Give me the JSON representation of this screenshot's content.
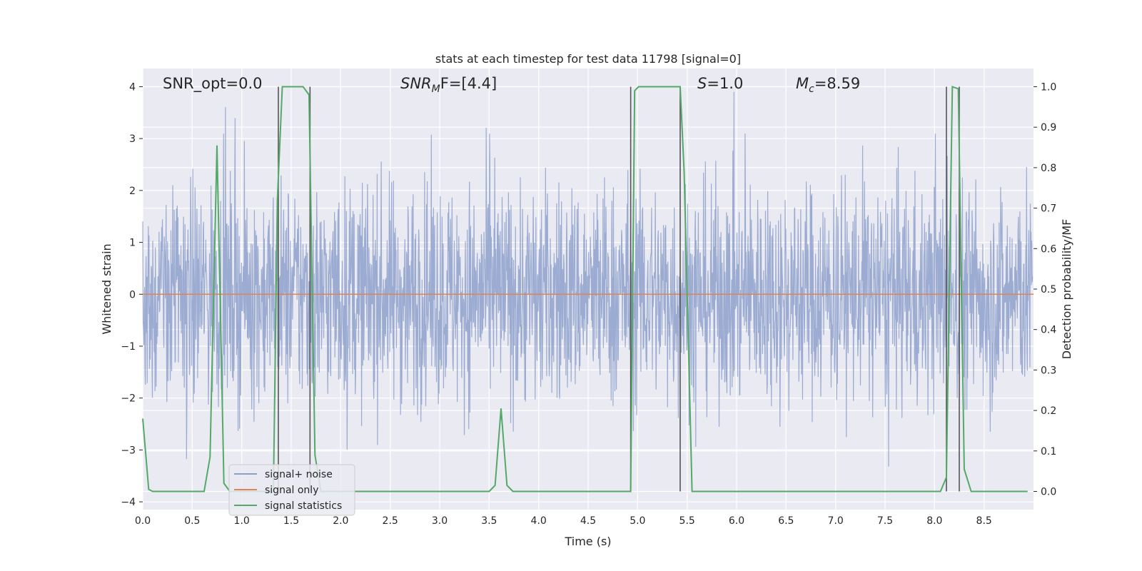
{
  "chart_data": {
    "type": "line",
    "title": "stats at each timestep for test data 11798 [signal=0]",
    "xlabel": "Time (s)",
    "ylabel": "Whitened strain",
    "ylabel_right": "Detection probability/MF",
    "xlim": [
      0,
      9.0
    ],
    "ylim": [
      -4.15,
      4.35
    ],
    "ylim_right": [
      -0.045,
      1.045
    ],
    "x_ticks": [
      "0.0",
      "0.5",
      "1.0",
      "1.5",
      "2.0",
      "2.5",
      "3.0",
      "3.5",
      "4.0",
      "4.5",
      "5.0",
      "5.5",
      "6.0",
      "6.5",
      "7.0",
      "7.5",
      "8.0",
      "8.5"
    ],
    "y_ticks": [
      "−4",
      "−3",
      "−2",
      "−1",
      "0",
      "1",
      "2",
      "3",
      "4"
    ],
    "y_ticks_right": [
      "0.0",
      "0.1",
      "0.2",
      "0.3",
      "0.4",
      "0.5",
      "0.6",
      "0.7",
      "0.8",
      "0.9",
      "1.0"
    ],
    "grid": true,
    "legend_position": "lower-left",
    "annotations": {
      "snr_opt": "SNR_opt=0.0",
      "snr_mf_main": "SNR",
      "snr_mf_sub": "M",
      "snr_mf_rest": "F=[4.4]",
      "s_main": "S",
      "s_rest": "=1.0",
      "mc_main": "M",
      "mc_sub": "c",
      "mc_rest": "=8.59"
    },
    "series": [
      {
        "name": "signal+ noise",
        "color": "#8da0cb",
        "description_only": "whitened strain noise time series, amplitude roughly within ±2.5 with spikes up to ±3.9",
        "x_range": [
          0,
          8.99
        ],
        "approx_band": [
          -2.4,
          2.4
        ]
      },
      {
        "name": "signal only",
        "color": "#dd8452",
        "x": [
          0,
          9.0
        ],
        "y": [
          0,
          0
        ]
      },
      {
        "name": "signal statistics",
        "color": "#55a868",
        "x": [
          0.0,
          0.06,
          0.1,
          0.62,
          0.68,
          0.75,
          0.82,
          0.88,
          1.32,
          1.36,
          1.41,
          1.62,
          1.68,
          1.74,
          1.8,
          3.5,
          3.56,
          3.62,
          3.68,
          3.74,
          4.93,
          4.97,
          5.01,
          5.43,
          5.47,
          5.55,
          8.06,
          8.12,
          8.18,
          8.24,
          8.3,
          8.37,
          8.94
        ],
        "y": [
          0.18,
          0.005,
          0.0,
          0.0,
          0.085,
          0.855,
          0.02,
          0.0,
          0.0,
          0.72,
          1.0,
          1.0,
          0.98,
          0.09,
          0.0,
          0.0,
          0.015,
          0.205,
          0.015,
          0.0,
          0.0,
          0.99,
          1.0,
          1.0,
          0.79,
          0.0,
          0.0,
          0.035,
          1.0,
          0.995,
          0.055,
          0.0,
          0.0
        ]
      }
    ],
    "vertical_lines": [
      {
        "x": 1.37,
        "color": "#555555"
      },
      {
        "x": 1.69,
        "color": "#555555"
      },
      {
        "x": 4.93,
        "color": "#555555"
      },
      {
        "x": 5.43,
        "color": "#555555"
      },
      {
        "x": 8.12,
        "color": "#555555"
      },
      {
        "x": 8.25,
        "color": "#555555"
      }
    ],
    "colors": {
      "plot_background": "#eaeaf2",
      "grid": "#ffffff",
      "text": "#262626"
    }
  }
}
